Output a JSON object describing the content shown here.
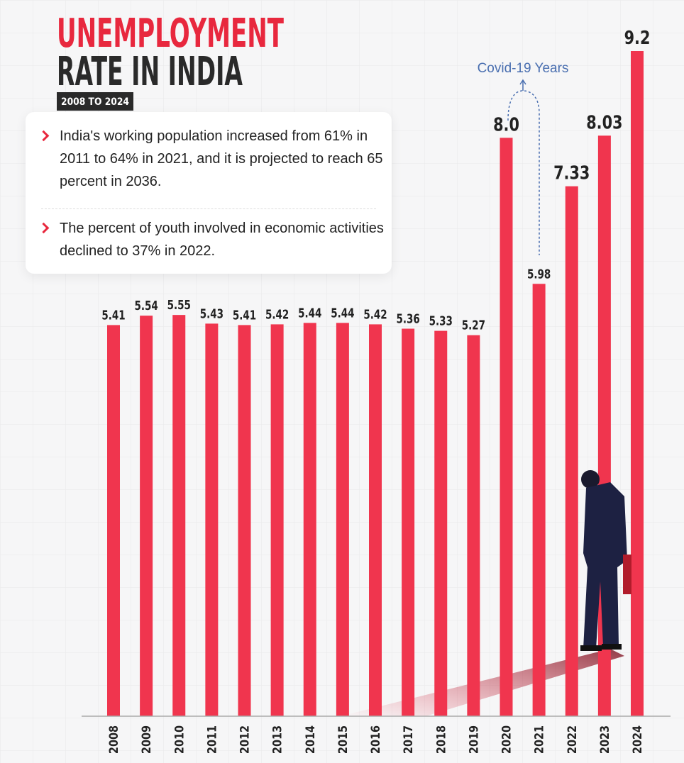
{
  "chart_data": {
    "type": "bar",
    "title_lines": [
      "UNEMPLOYMENT",
      "RATE IN INDIA"
    ],
    "subtitle": "2008 TO 2024",
    "notes": [
      "India's working population increased from 61% in 2011 to 64% in 2021, and it is projected to reach 65 percent in 2036.",
      "The percent of youth involved in economic activities declined to 37% in 2022."
    ],
    "annotation": "Covid-19 Years",
    "categories": [
      "2008",
      "2009",
      "2010",
      "2011",
      "2012",
      "2013",
      "2014",
      "2015",
      "2016",
      "2017",
      "2018",
      "2019",
      "2020",
      "2021",
      "2022",
      "2023",
      "2024"
    ],
    "values": [
      5.41,
      5.54,
      5.55,
      5.43,
      5.41,
      5.42,
      5.44,
      5.44,
      5.42,
      5.36,
      5.33,
      5.27,
      8.0,
      5.98,
      7.33,
      8.03,
      9.2
    ],
    "value_labels": [
      "5.41",
      "5.54",
      "5.55",
      "5.43",
      "5.41",
      "5.42",
      "5.44",
      "5.44",
      "5.42",
      "5.36",
      "5.33",
      "5.27",
      "8.0",
      "5.98",
      "7.33",
      "8.03",
      "9.2"
    ],
    "color": "#f0354e"
  }
}
